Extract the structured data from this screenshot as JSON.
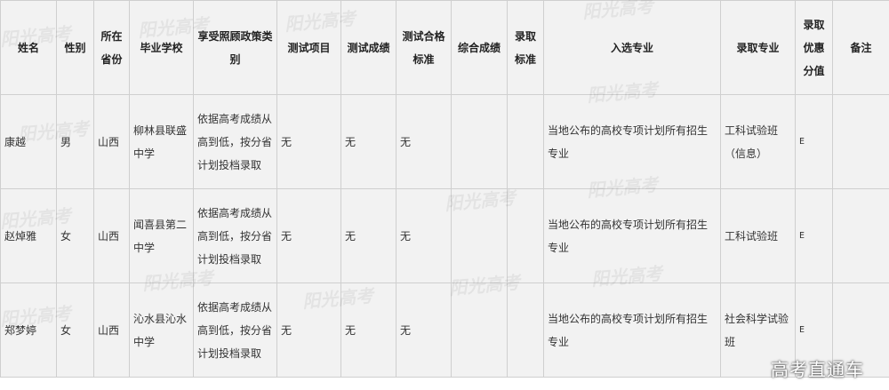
{
  "headers": [
    "姓名",
    "性别",
    "所在省份",
    "毕业学校",
    "享受照顾政策类别",
    "测试项目",
    "测试成绩",
    "测试合格标准",
    "综合成绩",
    "录取标准",
    "入选专业",
    "录取专业",
    "录取优惠分值",
    "备注"
  ],
  "rows": [
    [
      "康越",
      "男",
      "山西",
      "柳林县联盛中学",
      "依据高考成绩从高到低，按分省计划投档录取",
      "无",
      "无",
      "无",
      "",
      "",
      "当地公布的高校专项计划所有招生专业",
      "工科试验班（信息）",
      "E",
      ""
    ],
    [
      "赵焯雅",
      "女",
      "山西",
      "闻喜县第二中学",
      "依据高考成绩从高到低，按分省计划投档录取",
      "无",
      "无",
      "无",
      "",
      "",
      "当地公布的高校专项计划所有招生专业",
      "工科试验班",
      "E",
      ""
    ],
    [
      "郑梦婷",
      "女",
      "山西",
      "沁水县沁水中学",
      "依据高考成绩从高到低，按分省计划投档录取",
      "无",
      "无",
      "无",
      "",
      "",
      "当地公布的高校专项计划所有招生专业",
      "社会科学试验班",
      "E",
      ""
    ]
  ],
  "watermark": "阳光高考",
  "logo": "高考直通车"
}
